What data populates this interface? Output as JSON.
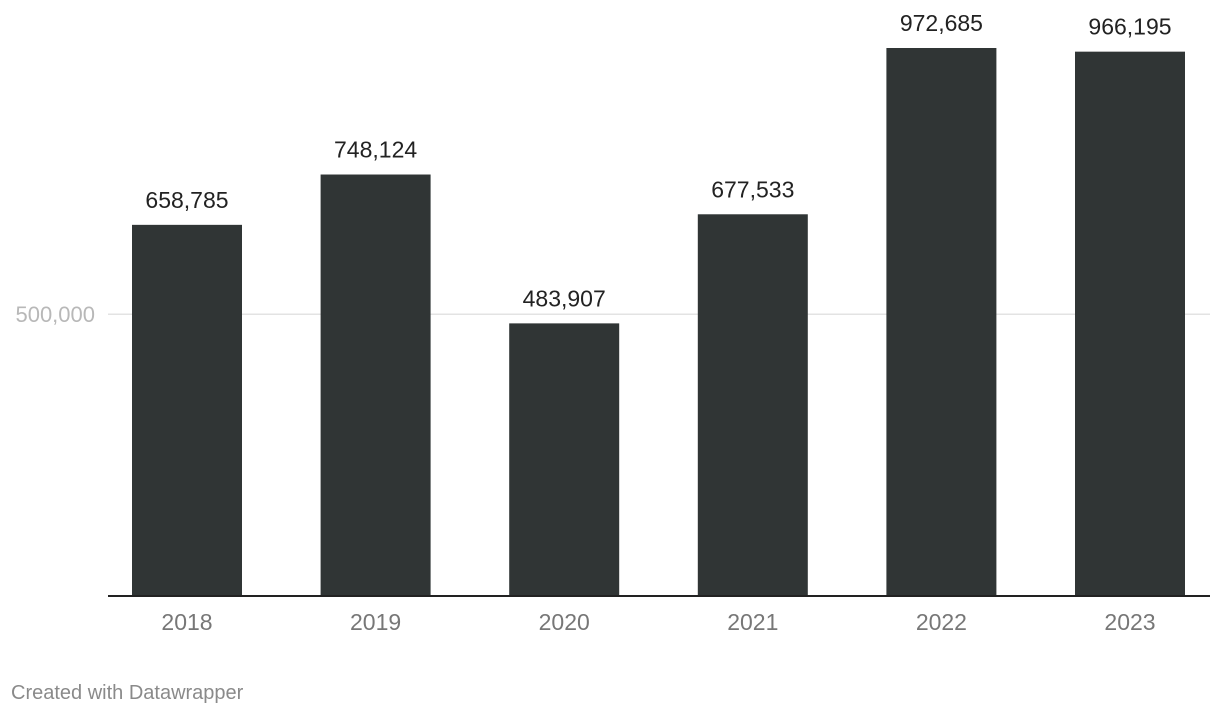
{
  "chart_data": {
    "type": "bar",
    "categories": [
      "2018",
      "2019",
      "2020",
      "2021",
      "2022",
      "2023"
    ],
    "values": [
      658785,
      748124,
      483907,
      677533,
      972685,
      966195
    ],
    "value_labels": [
      "658,785",
      "748,124",
      "483,907",
      "677,533",
      "972,685",
      "966,195"
    ],
    "title": "",
    "xlabel": "",
    "ylabel": "",
    "ylim": [
      0,
      972685
    ],
    "y_ticks": [
      500000
    ],
    "y_tick_labels": [
      "500,000"
    ],
    "grid": true,
    "legend": "none",
    "colors": {
      "bar": "#303535",
      "gridline": "#e3e3e3",
      "baseline": "#222222",
      "ytick": "#b8b8b8",
      "xtick": "#777777",
      "value_label": "#222222"
    }
  },
  "footer": {
    "credit": "Created with Datawrapper"
  }
}
